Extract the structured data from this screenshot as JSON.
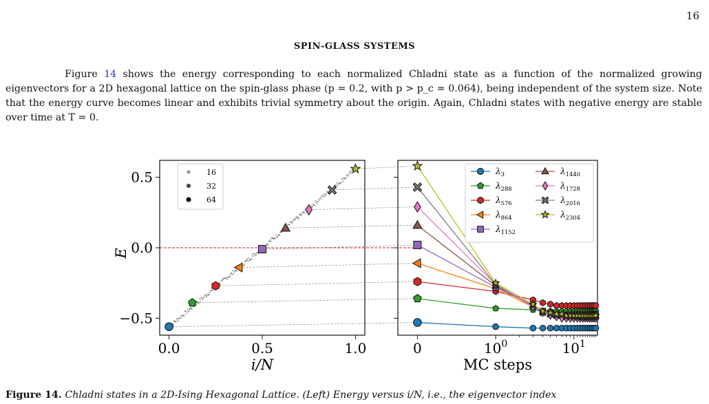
{
  "page_number": "16",
  "section_title": "SPIN-GLASS SYSTEMS",
  "paragraph": {
    "before_ref": "Figure ",
    "ref": "14",
    "after_ref": " shows the energy corresponding to each normalized Chladni state as a function of the normalized growing eigenvectors for a 2D hexagonal lattice on the spin-glass phase (p = 0.2, with p > p_c ≃ 0.064), being independent of the system size. Note that the energy curve becomes linear and exhibits trivial symmetry about the origin. Again, Chladni states with negative energy are stable over time at T = 0."
  },
  "caption": {
    "lead": "Figure 14.",
    "title": " Chladni states in a 2D-Ising Hexagonal Lattice. (Left) Energy versus i/N, i.e., the eigenvector index"
  },
  "colors": {
    "dashed_zero_line": "#cc1f1f",
    "scatter_points": "#555555",
    "guide_lines": "#777777"
  },
  "chart_data": [
    {
      "type": "scatter",
      "title": "",
      "xlabel": "i/N",
      "ylabel": "E",
      "xlim": [
        -0.05,
        1.05
      ],
      "ylim": [
        -0.62,
        0.62
      ],
      "xticks": [
        "0.0",
        "0.5",
        "1.0"
      ],
      "yticks": [
        "−0.5",
        "0.0",
        "0.5"
      ],
      "reference_line": {
        "y": 0,
        "style": "dashed",
        "color": "#cc1f1f"
      },
      "legend": {
        "position": "top-left",
        "entries": [
          "16",
          "32",
          "64"
        ]
      },
      "series": [
        {
          "label": "λ3",
          "x": 0.0,
          "y": -0.56,
          "marker": "circle",
          "color": "#1f77b4"
        },
        {
          "label": "λ288",
          "x": 0.125,
          "y": -0.39,
          "marker": "pentagon",
          "color": "#2ca02c"
        },
        {
          "label": "λ576",
          "x": 0.25,
          "y": -0.27,
          "marker": "hexagon",
          "color": "#d62728"
        },
        {
          "label": "λ864",
          "x": 0.375,
          "y": -0.14,
          "marker": "triangle-left",
          "color": "#ff7f0e"
        },
        {
          "label": "λ1152",
          "x": 0.5,
          "y": -0.01,
          "marker": "square",
          "color": "#9467bd"
        },
        {
          "label": "λ1440",
          "x": 0.625,
          "y": 0.14,
          "marker": "triangle-up",
          "color": "#8c564b"
        },
        {
          "label": "λ1728",
          "x": 0.75,
          "y": 0.27,
          "marker": "diamond",
          "color": "#e377c2"
        },
        {
          "label": "λ2016",
          "x": 0.875,
          "y": 0.41,
          "marker": "x-filled",
          "color": "#7f7f7f"
        },
        {
          "label": "λ2304",
          "x": 1.0,
          "y": 0.56,
          "marker": "star",
          "color": "#bcbd22"
        }
      ]
    },
    {
      "type": "line",
      "title": "",
      "xlabel": "MC steps",
      "ylabel": "",
      "xscale": "symlog",
      "xlim": [
        -0.25,
        20
      ],
      "ylim": [
        -0.62,
        0.62
      ],
      "xticks": [
        "0",
        "10^0",
        "10^1"
      ],
      "legend": {
        "position": "top-right",
        "columns": 2
      },
      "x": [
        0,
        1,
        3,
        4,
        5,
        6,
        7,
        8,
        9,
        10,
        11,
        12,
        13,
        14,
        15,
        16,
        17,
        18,
        19
      ],
      "series": [
        {
          "name": "λ3",
          "color": "#1f77b4",
          "marker": "circle",
          "values": [
            -0.53,
            -0.56,
            -0.57,
            -0.57,
            -0.57,
            -0.57,
            -0.57,
            -0.57,
            -0.57,
            -0.57,
            -0.57,
            -0.57,
            -0.57,
            -0.57,
            -0.57,
            -0.57,
            -0.57,
            -0.57,
            -0.57
          ]
        },
        {
          "name": "λ288",
          "color": "#2ca02c",
          "marker": "pentagon",
          "values": [
            -0.36,
            -0.43,
            -0.44,
            -0.45,
            -0.45,
            -0.45,
            -0.45,
            -0.45,
            -0.45,
            -0.45,
            -0.45,
            -0.45,
            -0.45,
            -0.45,
            -0.45,
            -0.45,
            -0.45,
            -0.45,
            -0.45
          ]
        },
        {
          "name": "λ576",
          "color": "#d62728",
          "marker": "hexagon",
          "values": [
            -0.24,
            -0.31,
            -0.37,
            -0.39,
            -0.4,
            -0.41,
            -0.41,
            -0.41,
            -0.41,
            -0.41,
            -0.41,
            -0.41,
            -0.41,
            -0.41,
            -0.41,
            -0.41,
            -0.41,
            -0.41,
            -0.41
          ]
        },
        {
          "name": "λ864",
          "color": "#ff7f0e",
          "marker": "triangle-left",
          "values": [
            -0.11,
            -0.29,
            -0.42,
            -0.45,
            -0.46,
            -0.47,
            -0.47,
            -0.47,
            -0.47,
            -0.47,
            -0.47,
            -0.47,
            -0.47,
            -0.47,
            -0.47,
            -0.47,
            -0.47,
            -0.47,
            -0.47
          ]
        },
        {
          "name": "λ1152",
          "color": "#9467bd",
          "marker": "square",
          "values": [
            0.02,
            -0.28,
            -0.41,
            -0.45,
            -0.47,
            -0.48,
            -0.48,
            -0.48,
            -0.48,
            -0.48,
            -0.48,
            -0.48,
            -0.48,
            -0.48,
            -0.48,
            -0.48,
            -0.48,
            -0.48,
            -0.48
          ]
        },
        {
          "name": "λ1440",
          "color": "#8c564b",
          "marker": "triangle-up",
          "values": [
            0.16,
            -0.27,
            -0.41,
            -0.45,
            -0.47,
            -0.48,
            -0.48,
            -0.48,
            -0.48,
            -0.48,
            -0.48,
            -0.48,
            -0.48,
            -0.48,
            -0.48,
            -0.48,
            -0.48,
            -0.48,
            -0.48
          ]
        },
        {
          "name": "λ1728",
          "color": "#e377c2",
          "marker": "diamond",
          "values": [
            0.29,
            -0.26,
            -0.42,
            -0.46,
            -0.48,
            -0.49,
            -0.5,
            -0.5,
            -0.5,
            -0.5,
            -0.5,
            -0.5,
            -0.5,
            -0.5,
            -0.5,
            -0.5,
            -0.5,
            -0.5,
            -0.5
          ]
        },
        {
          "name": "λ2016",
          "color": "#7f7f7f",
          "marker": "x-filled",
          "values": [
            0.43,
            -0.26,
            -0.41,
            -0.46,
            -0.47,
            -0.48,
            -0.48,
            -0.49,
            -0.49,
            -0.49,
            -0.49,
            -0.49,
            -0.49,
            -0.49,
            -0.49,
            -0.49,
            -0.49,
            -0.49,
            -0.49
          ]
        },
        {
          "name": "λ2304",
          "color": "#bcbd22",
          "marker": "star",
          "values": [
            0.58,
            -0.25,
            -0.4,
            -0.45,
            -0.46,
            -0.47,
            -0.47,
            -0.48,
            -0.48,
            -0.48,
            -0.48,
            -0.48,
            -0.48,
            -0.48,
            -0.48,
            -0.48,
            -0.48,
            -0.48,
            -0.48
          ]
        }
      ]
    }
  ]
}
